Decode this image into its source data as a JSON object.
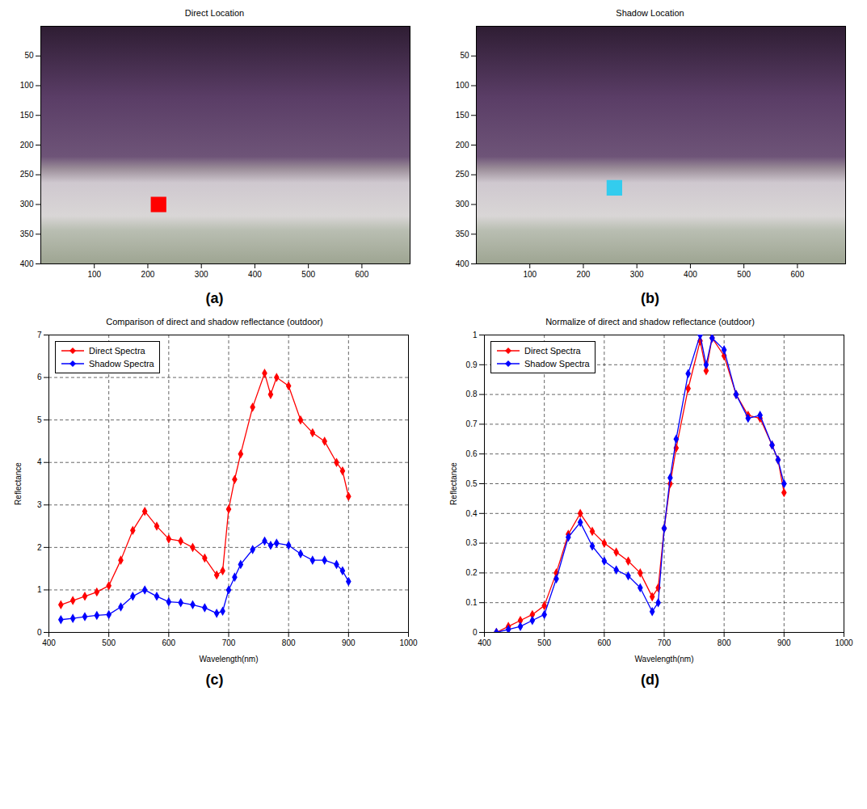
{
  "chart_data": [
    {
      "type": "image",
      "title": "Direct Location",
      "caption": "(a)",
      "x": [
        220
      ],
      "values": [
        300
      ],
      "color": "#ff0000",
      "marker": "square",
      "xlim": [
        0,
        690
      ],
      "xticks": [
        100,
        200,
        300,
        400,
        500,
        600
      ],
      "ylim": [
        400,
        0
      ],
      "yticks": [
        50,
        100,
        150,
        200,
        250,
        300,
        350,
        400
      ]
    },
    {
      "type": "image",
      "title": "Shadow Location",
      "caption": "(b)",
      "x": [
        258
      ],
      "values": [
        272
      ],
      "color": "#33ccee",
      "marker": "square",
      "xlim": [
        0,
        690
      ],
      "xticks": [
        100,
        200,
        300,
        400,
        500,
        600
      ],
      "ylim": [
        400,
        0
      ],
      "yticks": [
        50,
        100,
        150,
        200,
        250,
        300,
        350,
        400
      ]
    },
    {
      "type": "line",
      "title": "Comparison of direct and shadow reflectance (outdoor)",
      "caption": "(c)",
      "xlabel": "Wavelength(nm)",
      "ylabel": "Reflectance",
      "x": [
        420,
        440,
        460,
        480,
        500,
        520,
        540,
        560,
        580,
        600,
        620,
        640,
        660,
        680,
        690,
        700,
        710,
        720,
        740,
        760,
        770,
        780,
        800,
        820,
        840,
        860,
        880,
        890,
        900
      ],
      "series": [
        {
          "name": "Direct Spectra",
          "color": "#ff0000",
          "marker": "diamond",
          "values": [
            0.65,
            0.75,
            0.85,
            0.95,
            1.1,
            1.7,
            2.4,
            2.85,
            2.5,
            2.2,
            2.15,
            2.0,
            1.75,
            1.35,
            1.45,
            2.9,
            3.6,
            4.2,
            5.3,
            6.1,
            5.6,
            6.0,
            5.8,
            5.0,
            4.7,
            4.5,
            4.0,
            3.8,
            3.2
          ]
        },
        {
          "name": "Shadow Spectra",
          "color": "#0000ff",
          "marker": "diamond",
          "values": [
            0.3,
            0.33,
            0.37,
            0.4,
            0.42,
            0.6,
            0.85,
            1.0,
            0.85,
            0.72,
            0.7,
            0.65,
            0.58,
            0.45,
            0.5,
            1.0,
            1.3,
            1.6,
            1.95,
            2.15,
            2.05,
            2.1,
            2.05,
            1.85,
            1.7,
            1.7,
            1.6,
            1.45,
            1.2
          ]
        }
      ],
      "xlim": [
        400,
        1000
      ],
      "xticks": [
        400,
        500,
        600,
        700,
        800,
        900,
        1000
      ],
      "ylim": [
        0,
        7
      ],
      "yticks": [
        0,
        1,
        2,
        3,
        4,
        5,
        6,
        7
      ],
      "grid": true,
      "legend": "top-left"
    },
    {
      "type": "line",
      "title": "Normalize of direct and shadow reflectance (outdoor)",
      "caption": "(d)",
      "xlabel": "Wavelength(nm)",
      "ylabel": "Reflectance",
      "x": [
        420,
        440,
        460,
        480,
        500,
        520,
        540,
        560,
        580,
        600,
        620,
        640,
        660,
        680,
        690,
        700,
        710,
        720,
        740,
        760,
        770,
        780,
        800,
        820,
        840,
        860,
        880,
        890,
        900
      ],
      "series": [
        {
          "name": "Direct Spectra",
          "color": "#ff0000",
          "marker": "diamond",
          "values": [
            0.0,
            0.02,
            0.04,
            0.06,
            0.09,
            0.2,
            0.33,
            0.4,
            0.34,
            0.3,
            0.27,
            0.24,
            0.2,
            0.12,
            0.15,
            0.35,
            0.5,
            0.62,
            0.82,
            0.98,
            0.88,
            0.99,
            0.93,
            0.8,
            0.73,
            0.72,
            0.63,
            0.58,
            0.47
          ]
        },
        {
          "name": "Shadow Spectra",
          "color": "#0000ff",
          "marker": "diamond",
          "values": [
            0.0,
            0.01,
            0.02,
            0.04,
            0.06,
            0.18,
            0.32,
            0.37,
            0.29,
            0.24,
            0.21,
            0.19,
            0.15,
            0.07,
            0.1,
            0.35,
            0.52,
            0.65,
            0.87,
            1.0,
            0.9,
            0.99,
            0.95,
            0.8,
            0.72,
            0.73,
            0.63,
            0.58,
            0.5
          ]
        }
      ],
      "xlim": [
        400,
        1000
      ],
      "xticks": [
        400,
        500,
        600,
        700,
        800,
        900,
        1000
      ],
      "ylim": [
        0,
        1
      ],
      "yticks": [
        0,
        0.1,
        0.2,
        0.3,
        0.4,
        0.5,
        0.6,
        0.7,
        0.8,
        0.9,
        1
      ],
      "grid": true,
      "legend": "top-left"
    }
  ]
}
